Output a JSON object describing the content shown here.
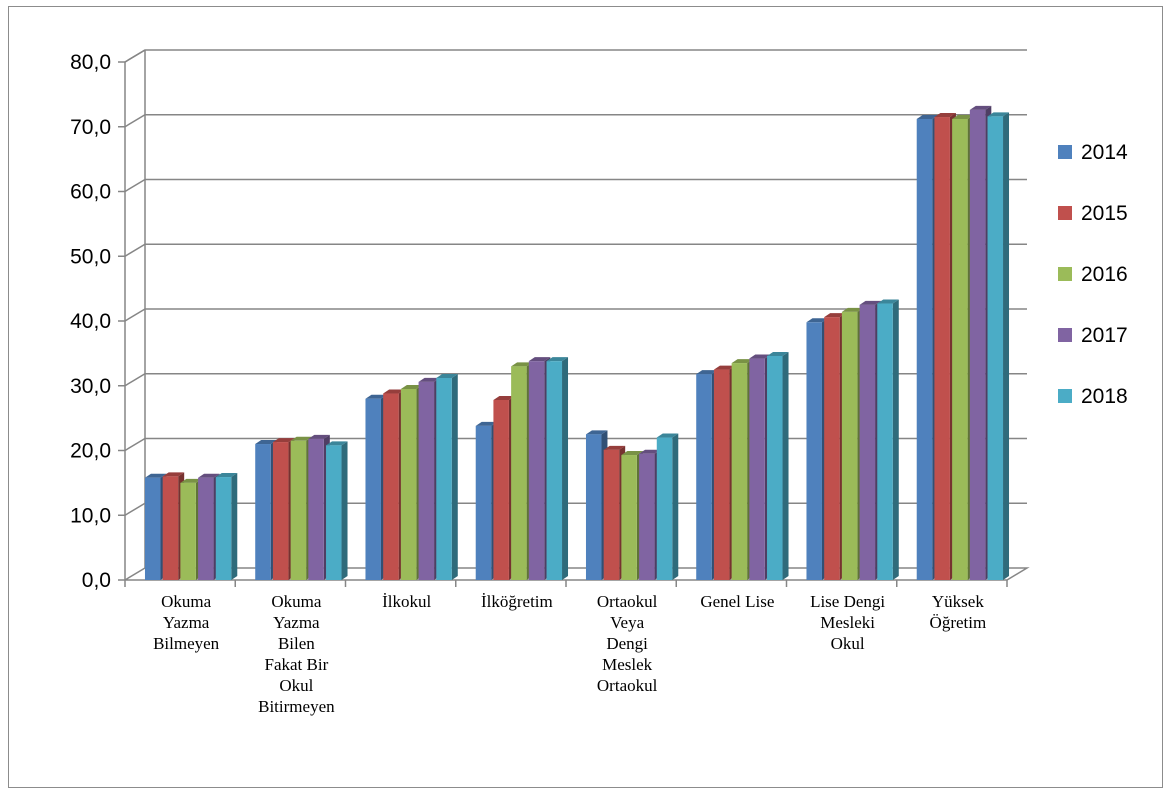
{
  "chart_data": {
    "type": "bar",
    "title": "",
    "xlabel": "",
    "ylabel": "",
    "ylim": [
      0,
      80
    ],
    "yticks": [
      "0,0",
      "10,0",
      "20,0",
      "30,0",
      "40,0",
      "50,0",
      "60,0",
      "70,0",
      "80,0"
    ],
    "grid": true,
    "legend_position": "right",
    "categories": [
      [
        "Okuma",
        "Yazma",
        "Bilmeyen"
      ],
      [
        "Okuma",
        "Yazma",
        "Bilen",
        "Fakat Bir",
        "Okul",
        "Bitirmeyen"
      ],
      [
        "İlkokul"
      ],
      [
        "İlköğretim"
      ],
      [
        "Ortaokul",
        "Veya",
        "Dengi",
        "Meslek",
        "Ortaokul"
      ],
      [
        "Genel Lise"
      ],
      [
        "Lise Dengi",
        "Mesleki",
        "Okul"
      ],
      [
        "Yüksek",
        "Öğretim"
      ]
    ],
    "series": [
      {
        "name": "2014",
        "color": "#4f81bd",
        "values": [
          15.8,
          21.0,
          28.0,
          23.8,
          22.5,
          31.8,
          39.8,
          71.2
        ]
      },
      {
        "name": "2015",
        "color": "#c0504d",
        "values": [
          16.0,
          21.3,
          28.8,
          27.8,
          20.1,
          32.5,
          40.6,
          71.5
        ]
      },
      {
        "name": "2016",
        "color": "#9bbb59",
        "values": [
          15.0,
          21.5,
          29.5,
          33.0,
          19.3,
          33.5,
          41.4,
          71.2
        ]
      },
      {
        "name": "2017",
        "color": "#8064a2",
        "values": [
          15.8,
          21.8,
          30.6,
          33.8,
          19.5,
          34.2,
          42.5,
          72.6
        ]
      },
      {
        "name": "2018",
        "color": "#4bacc6",
        "values": [
          15.9,
          20.8,
          31.2,
          33.8,
          22.0,
          34.6,
          42.7,
          71.6
        ]
      }
    ]
  }
}
